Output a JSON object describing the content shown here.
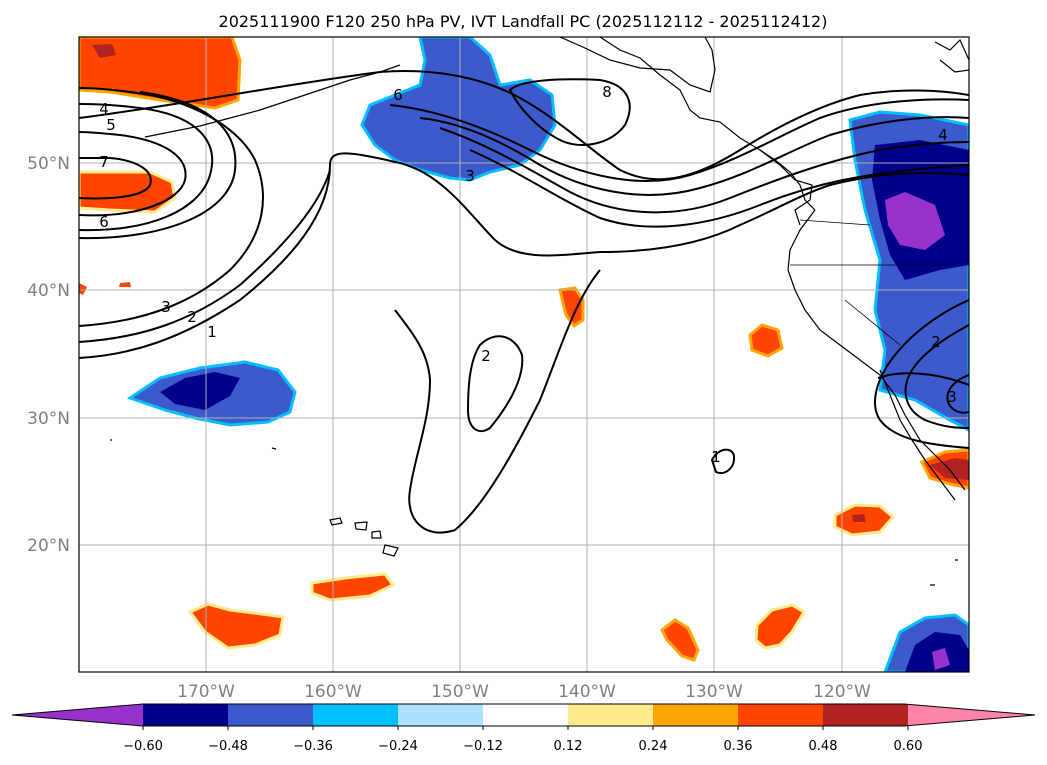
{
  "title": "2025111900 F120 250 hPa PV, IVT Landfall PC (2025112112 - 2025112412)",
  "map": {
    "projection": "Mercator",
    "lon_range": [
      -180,
      -110
    ],
    "lat_range": [
      10,
      60
    ],
    "gridline_color": "#b0b0b0",
    "coastline_color": "#000000",
    "lat_labels": [
      "20°N",
      "30°N",
      "40°N",
      "50°N"
    ],
    "lon_labels": [
      "170°W",
      "160°W",
      "150°W",
      "140°W",
      "130°W",
      "120°W"
    ]
  },
  "contour_labels": [
    "4",
    "5",
    "7",
    "6",
    "6",
    "3",
    "8",
    "3",
    "2",
    "1",
    "2",
    "1",
    "4",
    "2",
    "3"
  ],
  "colorbar": {
    "ticks": [
      "−0.60",
      "−0.48",
      "−0.36",
      "−0.24",
      "−0.12",
      "0.12",
      "0.24",
      "0.36",
      "0.48",
      "0.60"
    ],
    "colors": [
      "#9932cc",
      "#00008b",
      "#3d5acc",
      "#00bfff",
      "#addfff",
      "#ffffff",
      "#ffeb8b",
      "#ffa500",
      "#ff4500",
      "#b22222",
      "#ff85a8"
    ],
    "extend": "both"
  }
}
